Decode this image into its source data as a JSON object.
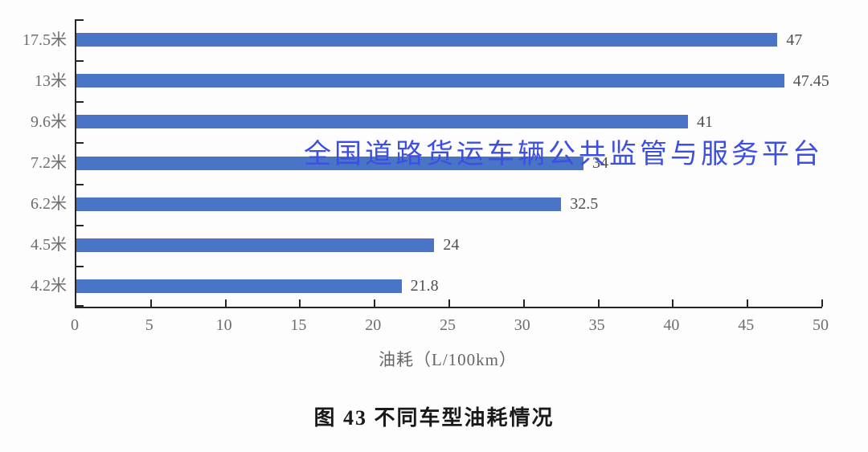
{
  "chart_data": {
    "type": "bar",
    "orientation": "horizontal",
    "title": "",
    "categories": [
      "17.5米",
      "13米",
      "9.6米",
      "7.2米",
      "6.2米",
      "4.5米",
      "4.2米"
    ],
    "values": [
      47,
      47.45,
      41,
      34,
      32.5,
      24,
      21.8
    ],
    "value_labels": [
      "47",
      "47.45",
      "41",
      "34",
      "32.5",
      "24",
      "21.8"
    ],
    "xlabel": "油耗（L/100km）",
    "ylabel": "",
    "xlim": [
      0,
      50
    ],
    "x_ticks": [
      0,
      5,
      10,
      15,
      20,
      25,
      30,
      35,
      40,
      45,
      50
    ],
    "grid": false,
    "legend_position": "none",
    "bar_color": "#4A74C6",
    "axis_color": "#262626",
    "tick_label_color": "#6e6e6e",
    "value_label_color": "#4f4f4f"
  },
  "caption": "图 43 不同车型油耗情况",
  "watermark": {
    "text": "全国道路货运车辆公共监管与服务平台",
    "color": "#3D4FE0"
  }
}
